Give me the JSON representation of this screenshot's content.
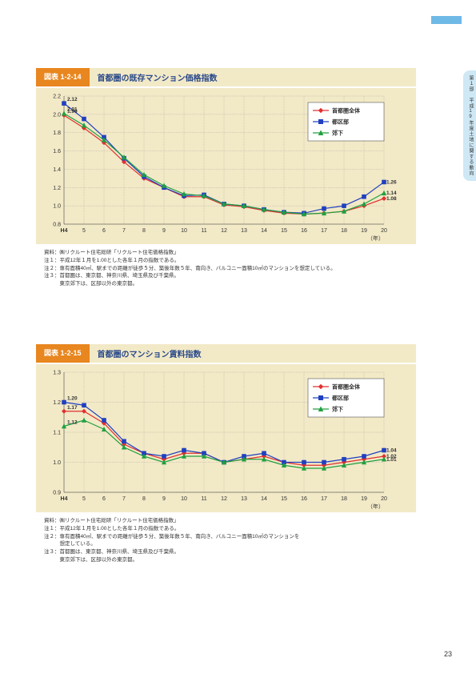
{
  "side_tab": "第１部　平成19年度土地に関する動向",
  "page_number": "23",
  "chart1": {
    "tag": "図表 1-2-14",
    "title": "首都圏の既存マンション価格指数",
    "type": "line",
    "x_categories": [
      "H4",
      "5",
      "6",
      "7",
      "8",
      "9",
      "10",
      "11",
      "12",
      "13",
      "14",
      "15",
      "16",
      "17",
      "18",
      "19",
      "20"
    ],
    "x_axis_suffix": "（年）",
    "ylim": [
      0.8,
      2.2
    ],
    "ytick_step": 0.2,
    "yticks": [
      "0.8",
      "1.0",
      "1.2",
      "1.4",
      "1.6",
      "1.8",
      "2.0",
      "2.2"
    ],
    "background_color": "#f2e9c7",
    "grid_color": "#888888",
    "series": [
      {
        "name": "首都圏全体",
        "color": "#e03030",
        "marker": "diamond",
        "start_label": "1.99",
        "values": [
          1.99,
          1.85,
          1.69,
          1.48,
          1.3,
          1.2,
          1.1,
          1.1,
          1.01,
          0.99,
          0.95,
          0.92,
          0.91,
          0.92,
          0.94,
          1.0,
          1.08
        ],
        "end_label": "1.08"
      },
      {
        "name": "都区部",
        "color": "#2040c0",
        "marker": "square",
        "start_label": "2.12",
        "values": [
          2.12,
          1.95,
          1.75,
          1.52,
          1.32,
          1.2,
          1.11,
          1.12,
          1.02,
          1.0,
          0.96,
          0.93,
          0.92,
          0.97,
          1.0,
          1.1,
          1.26
        ],
        "end_label": "1.26"
      },
      {
        "name": "郊下",
        "color": "#20a040",
        "marker": "triangle",
        "start_label": "2.01",
        "values": [
          2.01,
          1.88,
          1.72,
          1.53,
          1.34,
          1.22,
          1.13,
          1.11,
          1.02,
          1.0,
          0.96,
          0.93,
          0.91,
          0.92,
          0.94,
          1.02,
          1.14
        ],
        "end_label": "1.14"
      }
    ],
    "notes": [
      "資料：㈱リクルート住宅総研「リクルート住宅価格指数」",
      "注１：平成12年１月を1.00とした各年１月の指数である。",
      "注２：専有面積40㎡、駅までの距離が徒歩５分、築後年数５年、南向き、バルコニー面積10㎡のマンションを想定している。",
      "注３：首都圏は、東京都、神奈川県、埼玉県及び千葉県。",
      "　　　東京郊下は、区部以外の東京都。"
    ]
  },
  "chart2": {
    "tag": "図表 1-2-15",
    "title": "首都圏のマンション賃料指数",
    "type": "line",
    "x_categories": [
      "H4",
      "5",
      "6",
      "7",
      "8",
      "9",
      "10",
      "11",
      "12",
      "13",
      "14",
      "15",
      "16",
      "17",
      "18",
      "19",
      "20"
    ],
    "x_axis_suffix": "（年）",
    "ylim": [
      0.9,
      1.3
    ],
    "ytick_step": 0.1,
    "yticks": [
      "0.9",
      "1.0",
      "1.1",
      "1.2",
      "1.3"
    ],
    "background_color": "#f2e9c7",
    "grid_color": "#888888",
    "series": [
      {
        "name": "首都圏全体",
        "color": "#e03030",
        "marker": "diamond",
        "start_label": "1.17",
        "values": [
          1.17,
          1.17,
          1.13,
          1.06,
          1.03,
          1.01,
          1.03,
          1.03,
          1.0,
          1.01,
          1.02,
          1.0,
          0.99,
          0.99,
          1.0,
          1.01,
          1.02
        ],
        "end_label": "1.02"
      },
      {
        "name": "都区部",
        "color": "#2040c0",
        "marker": "square",
        "start_label": "1.20",
        "values": [
          1.2,
          1.19,
          1.14,
          1.07,
          1.03,
          1.02,
          1.04,
          1.03,
          1.0,
          1.02,
          1.03,
          1.0,
          1.0,
          1.0,
          1.01,
          1.02,
          1.04
        ],
        "end_label": "1.04"
      },
      {
        "name": "郊下",
        "color": "#20a040",
        "marker": "triangle",
        "start_label": "1.12",
        "values": [
          1.12,
          1.14,
          1.11,
          1.05,
          1.02,
          1.0,
          1.02,
          1.02,
          1.0,
          1.01,
          1.01,
          0.99,
          0.98,
          0.98,
          0.99,
          1.0,
          1.01
        ],
        "end_label": "1.01"
      }
    ],
    "notes": [
      "資料：㈱リクルート住宅総研「リクルート住宅価格指数」",
      "注１：平成12年１月を1.00とした各年１月の指数である。",
      "注２：専有面積40㎡、駅までの距離が徒歩５分、築後年数５年、南向き、バルコニー面積10㎡のマンションを",
      "　　　想定している。",
      "注３：首都圏は、東京都、神奈川県、埼玉県及び千葉県。",
      "　　　東京郊下は、区部以外の東京都。"
    ]
  }
}
